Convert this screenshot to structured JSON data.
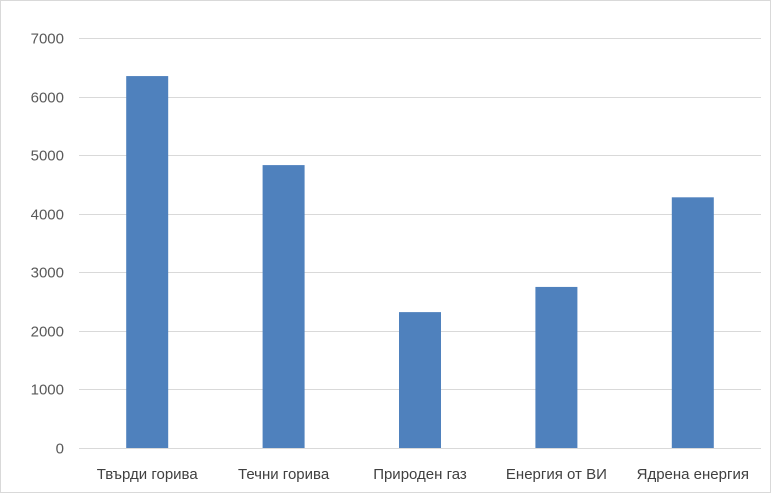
{
  "chart_data": {
    "type": "bar",
    "categories": [
      "Твърди горива",
      "Течни горива",
      "Природен газ",
      "Енергия от ВИ",
      "Ядрена енергия"
    ],
    "values": [
      6350,
      4830,
      2320,
      2750,
      4280
    ],
    "ylim": [
      0,
      7000
    ],
    "yticks": [
      0,
      1000,
      2000,
      3000,
      4000,
      5000,
      6000,
      7000
    ],
    "grid": true,
    "legend": "none",
    "bar_color": "#4f81bd",
    "grid_color": "#d9d9d9"
  }
}
